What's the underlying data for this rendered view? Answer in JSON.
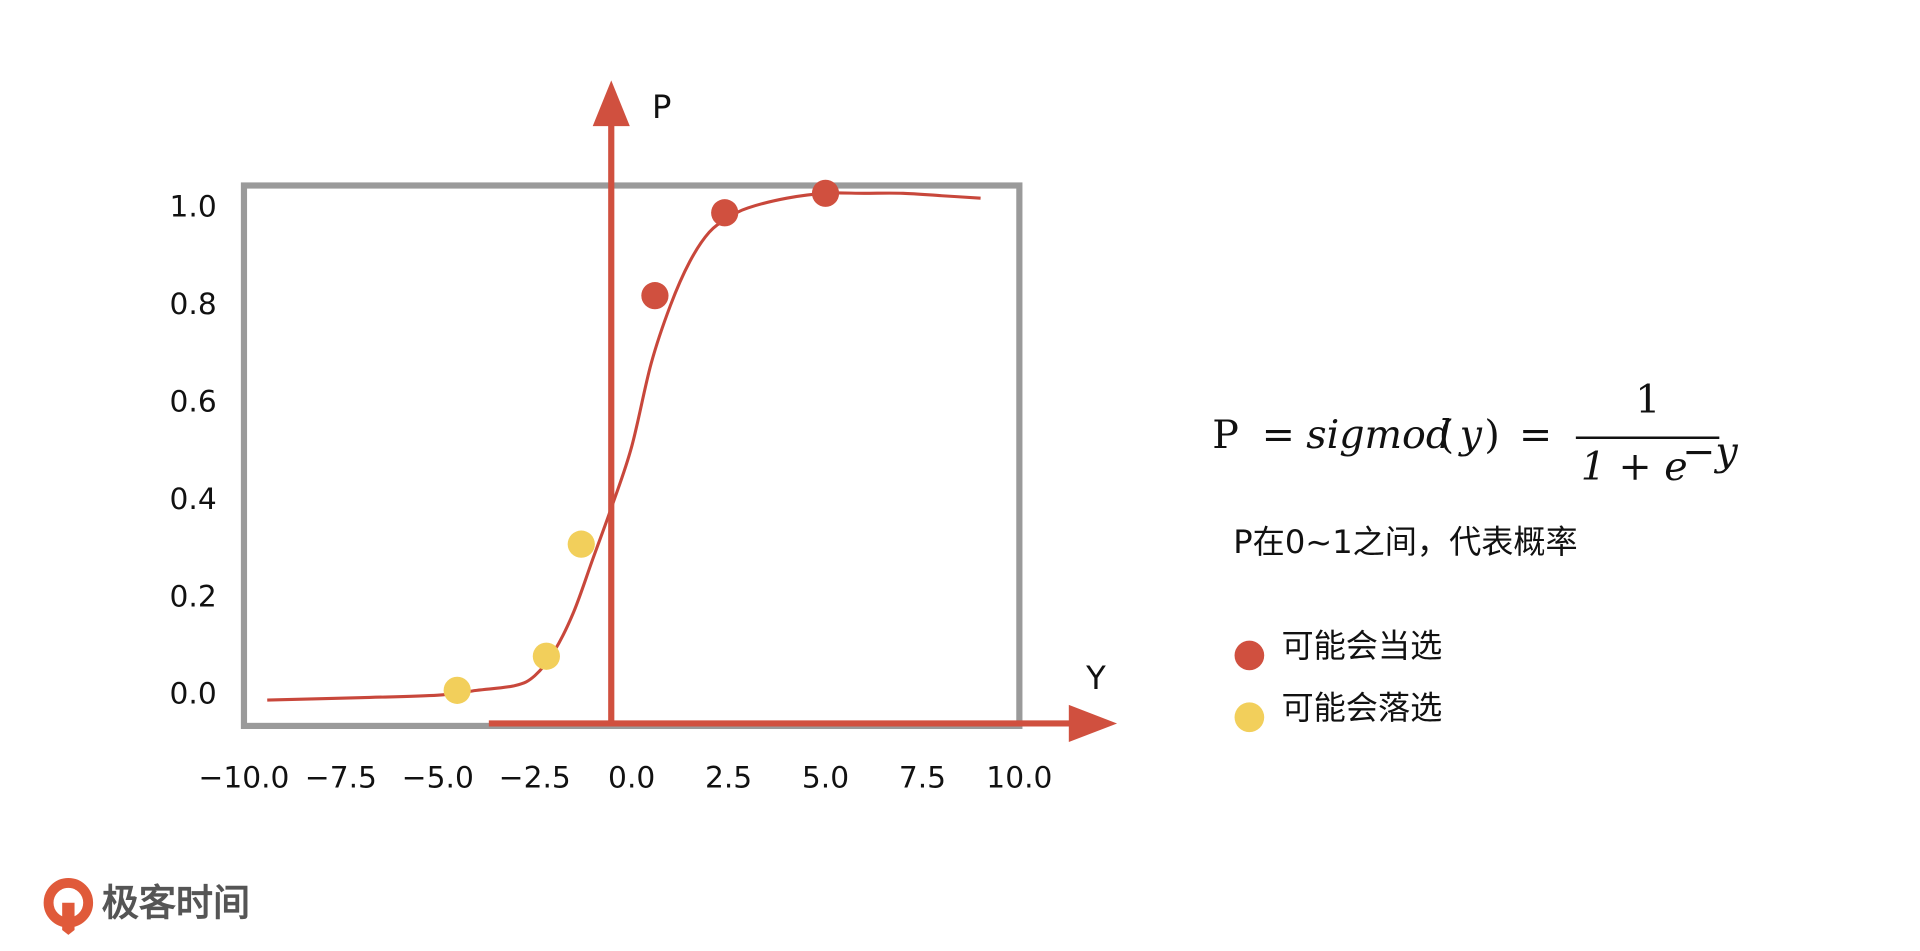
{
  "chart_data": {
    "type": "scatter",
    "y_axis_label": "P",
    "x_axis_label": "Y",
    "xlim": [
      -10,
      10
    ],
    "ylim": [
      -0.063,
      1.046
    ],
    "xticks": [
      {
        "value": -10,
        "label": "−10.0"
      },
      {
        "value": -7.5,
        "label": "−7.5"
      },
      {
        "value": -5,
        "label": "−5.0"
      },
      {
        "value": -2.5,
        "label": "−2.5"
      },
      {
        "value": 0,
        "label": "0.0"
      },
      2.5,
      {
        "value": 5,
        "label": "5.0"
      },
      7.5,
      {
        "value": 10,
        "label": "10.0"
      }
    ],
    "yticks": [
      {
        "value": 0,
        "label": "0.0"
      },
      0.2,
      0.4,
      0.6,
      0.8,
      {
        "value": 1,
        "label": "1.0"
      }
    ],
    "curve": {
      "color": "#c8473b",
      "x": [
        -9.4,
        -7,
        -5,
        -4,
        -3,
        -2.5,
        -2,
        -1.5,
        -1,
        -0.5,
        0,
        0.5,
        1,
        1.5,
        2,
        2.5,
        3,
        4,
        5,
        6,
        7,
        8,
        9
      ],
      "values": [
        -0.01,
        -0.005,
        0,
        0.01,
        0.02,
        0.04,
        0.09,
        0.17,
        0.28,
        0.39,
        0.51,
        0.68,
        0.8,
        0.89,
        0.95,
        0.98,
        1.0,
        1.02,
        1.03,
        1.03,
        1.03,
        1.025,
        1.02
      ]
    },
    "series": [
      {
        "name": "可能会当选",
        "color": "#d0503f",
        "x": [
          0.6,
          2.4,
          5.0
        ],
        "values": [
          0.82,
          0.99,
          1.03
        ]
      },
      {
        "name": "可能会落选",
        "color": "#f2cf5b",
        "x": [
          -4.5,
          -2.2,
          -1.3
        ],
        "values": [
          0.01,
          0.08,
          0.31
        ]
      }
    ],
    "legend": "right",
    "formula": {
      "lhs": "P",
      "eq": "=",
      "func": "sigmod",
      "open": "(",
      "arg": "y",
      "close": ")",
      "eq2": "=",
      "numerator": "1",
      "denominator": "1 + e",
      "exponent": "−y"
    },
    "note": "P在0~1之间，代表概率"
  },
  "logo": "极客时间"
}
